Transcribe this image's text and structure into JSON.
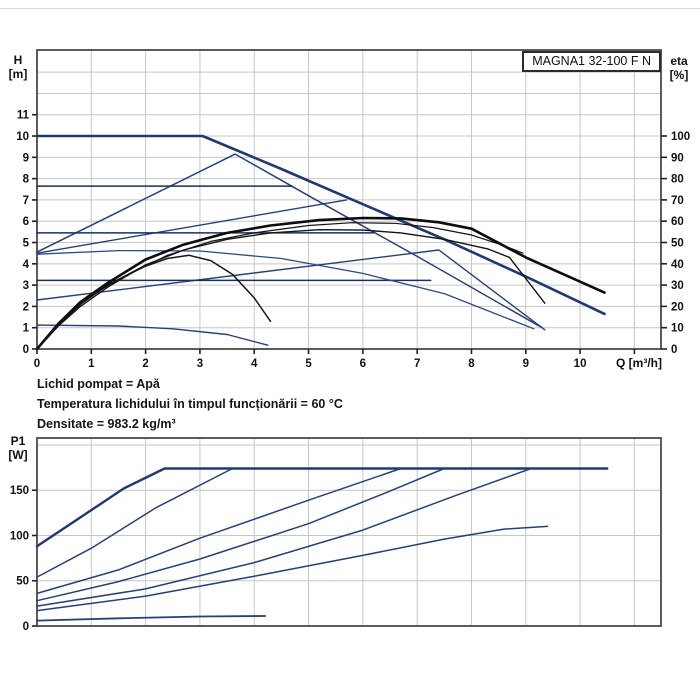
{
  "page": {
    "model": "MAGNA1 32-100 F N",
    "accent_color": "#1e3a74",
    "grid_color": "#c6c6c6",
    "border_color": "#4a4a4a"
  },
  "labels": {
    "h": "H",
    "h_unit": "[m]",
    "eta": "eta",
    "eta_unit": "[%]",
    "q": "Q [m³/h]",
    "p1": "P1",
    "p1_unit": "[W]"
  },
  "info": {
    "lines": [
      "Lichid pompat = Apă",
      "Temperatura lichidului în timpul funcționării = 60 °C",
      "Densitate = 983.2 kg/m³"
    ]
  },
  "chart_data": [
    {
      "type": "line",
      "id": "head-efficiency-chart",
      "title": "MAGNA1 32-100 F N",
      "xlabel": "Q [m³/h]",
      "ylabel": "H [m]",
      "y2label": "eta [%]",
      "x_range": [
        0,
        11.49
      ],
      "y_range": [
        0,
        14.04
      ],
      "y2_range": [
        0,
        100
      ],
      "x_ticks": [
        0,
        1,
        2,
        3,
        4,
        5,
        6,
        7,
        8,
        9,
        10
      ],
      "x_grid": [
        1,
        2,
        3,
        4,
        5,
        6,
        7,
        8,
        9,
        10,
        11
      ],
      "y_ticks": [
        0,
        1,
        2,
        3,
        4,
        5,
        6,
        7,
        8,
        9,
        10,
        11
      ],
      "y_grid": [
        1,
        2,
        3,
        4,
        5,
        6,
        7,
        8,
        9,
        10,
        11,
        12,
        13
      ],
      "eta_ticks": [
        0,
        10,
        20,
        30,
        40,
        50,
        60,
        70,
        80,
        90,
        100
      ],
      "grid": true,
      "legend": "none",
      "series": [
        {
          "name": "max-curve",
          "axis": "H",
          "color": "#1e3a74",
          "width": 2.6,
          "points": [
            [
              0,
              10
            ],
            [
              3.05,
              10
            ],
            [
              4.5,
              8.45
            ],
            [
              6,
              6.8
            ],
            [
              7.5,
              5.15
            ],
            [
              9,
              3.4
            ],
            [
              10.45,
              1.65
            ]
          ]
        },
        {
          "name": "prop-pressure-high",
          "axis": "H",
          "color": "#24417c",
          "width": 1.5,
          "points": [
            [
              0,
              4.55
            ],
            [
              3.65,
              9.15
            ],
            [
              5,
              7.2
            ],
            [
              7,
              4.35
            ],
            [
              9.3,
              1.0
            ]
          ]
        },
        {
          "name": "prop-pressure-mid",
          "axis": "H",
          "color": "#24417c",
          "width": 1.4,
          "points": [
            [
              0,
              4.5
            ],
            [
              5.7,
              7.0
            ]
          ]
        },
        {
          "name": "prop-pressure-low",
          "axis": "H",
          "color": "#24417c",
          "width": 1.4,
          "points": [
            [
              0,
              2.3
            ],
            [
              7.4,
              4.65
            ],
            [
              9.35,
              0.9
            ]
          ]
        },
        {
          "name": "const-pressure-high",
          "axis": "H",
          "color": "#16305f",
          "width": 1.5,
          "points": [
            [
              0,
              7.65
            ],
            [
              4.7,
              7.65
            ]
          ]
        },
        {
          "name": "const-pressure-mid",
          "axis": "H",
          "color": "#16305f",
          "width": 1.5,
          "points": [
            [
              0,
              5.45
            ],
            [
              6.2,
              5.45
            ]
          ]
        },
        {
          "name": "const-pressure-low",
          "axis": "H",
          "color": "#16305f",
          "width": 1.5,
          "points": [
            [
              0,
              3.22
            ],
            [
              7.25,
              3.22
            ]
          ]
        },
        {
          "name": "speed-curve-mid",
          "axis": "H",
          "color": "#2a4a86",
          "width": 1.3,
          "points": [
            [
              0,
              4.45
            ],
            [
              1.5,
              4.62
            ],
            [
              3,
              4.6
            ],
            [
              4.5,
              4.25
            ],
            [
              6,
              3.55
            ],
            [
              7.5,
              2.6
            ],
            [
              9.15,
              0.95
            ]
          ]
        },
        {
          "name": "min-curve",
          "axis": "H",
          "color": "#24417c",
          "width": 1.4,
          "points": [
            [
              0,
              1.12
            ],
            [
              1.5,
              1.08
            ],
            [
              2.5,
              0.95
            ],
            [
              3.5,
              0.68
            ],
            [
              4.25,
              0.18
            ]
          ]
        },
        {
          "name": "eta-max-curve",
          "axis": "eta",
          "color": "#0d0d0d",
          "width": 2.6,
          "points": [
            [
              0,
              0
            ],
            [
              0.4,
              12
            ],
            [
              0.8,
              22
            ],
            [
              1.3,
              31
            ],
            [
              2,
              42
            ],
            [
              2.7,
              49
            ],
            [
              3.5,
              54.5
            ],
            [
              4.3,
              58
            ],
            [
              5.2,
              60.5
            ],
            [
              6,
              61.5
            ],
            [
              6.7,
              61.3
            ],
            [
              7.4,
              59.5
            ],
            [
              8,
              56.5
            ],
            [
              9,
              43
            ],
            [
              10.45,
              26.5
            ]
          ]
        },
        {
          "name": "eta-curve-2",
          "axis": "eta",
          "color": "#141414",
          "width": 1.4,
          "points": [
            [
              0,
              0
            ],
            [
              0.4,
              11
            ],
            [
              0.8,
              20
            ],
            [
              1.3,
              29
            ],
            [
              2,
              39.5
            ],
            [
              2.7,
              46.5
            ],
            [
              3.5,
              51.5
            ],
            [
              4.3,
              54.5
            ],
            [
              5.2,
              56
            ],
            [
              6,
              55.8
            ],
            [
              6.7,
              54.5
            ],
            [
              7.5,
              51.5
            ],
            [
              8.3,
              47
            ],
            [
              8.7,
              43
            ],
            [
              9.35,
              21.5
            ]
          ]
        },
        {
          "name": "eta-curve-reduced",
          "axis": "eta",
          "color": "#141414",
          "width": 1.5,
          "points": [
            [
              0,
              0
            ],
            [
              0.4,
              11.5
            ],
            [
              0.8,
              21
            ],
            [
              1.3,
              30
            ],
            [
              1.9,
              38
            ],
            [
              2.4,
              42.5
            ],
            [
              2.8,
              44
            ],
            [
              3.2,
              41.5
            ],
            [
              3.6,
              35
            ],
            [
              4,
              24
            ],
            [
              4.3,
              13
            ]
          ]
        },
        {
          "name": "eta-curve-3",
          "axis": "eta",
          "color": "#141414",
          "width": 1.2,
          "points": [
            [
              0,
              0
            ],
            [
              0.5,
              14
            ],
            [
              1,
              25.5
            ],
            [
              1.7,
              35
            ],
            [
              2.4,
              44
            ],
            [
              3.2,
              50.5
            ],
            [
              4,
              54.5
            ],
            [
              5,
              58
            ],
            [
              5.8,
              59.3
            ],
            [
              6.6,
              59
            ],
            [
              7.3,
              57
            ],
            [
              8,
              53.5
            ],
            [
              8.6,
              48.5
            ],
            [
              8.95,
              45
            ]
          ]
        }
      ]
    },
    {
      "type": "line",
      "id": "power-chart",
      "title": "",
      "xlabel": "",
      "ylabel": "P1 [W]",
      "x_range": [
        0,
        11.49
      ],
      "y_range": [
        0,
        207.7
      ],
      "x_ticks": [],
      "x_grid": [
        1,
        2,
        3,
        4,
        5,
        6,
        7,
        8,
        9,
        10,
        11
      ],
      "y_ticks": [
        0,
        50,
        100,
        150
      ],
      "y_grid": [
        50,
        100,
        150,
        200
      ],
      "grid": true,
      "legend": "none",
      "series": [
        {
          "name": "power-max-curve",
          "axis": "P",
          "color": "#1e3a74",
          "width": 2.4,
          "points": [
            [
              0,
              88
            ],
            [
              0.8,
              120
            ],
            [
              1.6,
              152
            ],
            [
              2.35,
              174
            ],
            [
              10.5,
              174
            ]
          ]
        },
        {
          "name": "power-curve-2",
          "axis": "P",
          "color": "#24417c",
          "width": 1.5,
          "points": [
            [
              0,
              54
            ],
            [
              1,
              86
            ],
            [
              2.2,
              131
            ],
            [
              3.6,
              174
            ]
          ]
        },
        {
          "name": "power-curve-3",
          "axis": "P",
          "color": "#24417c",
          "width": 1.5,
          "points": [
            [
              0,
              36
            ],
            [
              1.5,
              62
            ],
            [
              3,
              97
            ],
            [
              5,
              139
            ],
            [
              6.7,
              174
            ]
          ]
        },
        {
          "name": "power-curve-4",
          "axis": "P",
          "color": "#24417c",
          "width": 1.5,
          "points": [
            [
              0,
              28
            ],
            [
              1.5,
              49
            ],
            [
              3,
              74
            ],
            [
              5,
              113
            ],
            [
              6.5,
              149
            ],
            [
              7.5,
              174
            ]
          ]
        },
        {
          "name": "power-curve-5",
          "axis": "P",
          "color": "#24417c",
          "width": 1.5,
          "points": [
            [
              0,
              22
            ],
            [
              2,
              41
            ],
            [
              4,
              70
            ],
            [
              6,
              106
            ],
            [
              7.7,
              144
            ],
            [
              9.1,
              174
            ]
          ]
        },
        {
          "name": "power-curve-6",
          "axis": "P",
          "color": "#24417c",
          "width": 1.5,
          "points": [
            [
              0,
              17
            ],
            [
              2,
              33
            ],
            [
              4,
              55
            ],
            [
              6,
              78
            ],
            [
              7.5,
              96
            ],
            [
              8.6,
              107
            ],
            [
              9.4,
              110
            ]
          ]
        },
        {
          "name": "power-min-curve",
          "axis": "P",
          "color": "#24417c",
          "width": 1.8,
          "points": [
            [
              0,
              6
            ],
            [
              1.5,
              8.5
            ],
            [
              3,
              10.5
            ],
            [
              4.2,
              11
            ]
          ]
        }
      ]
    }
  ]
}
